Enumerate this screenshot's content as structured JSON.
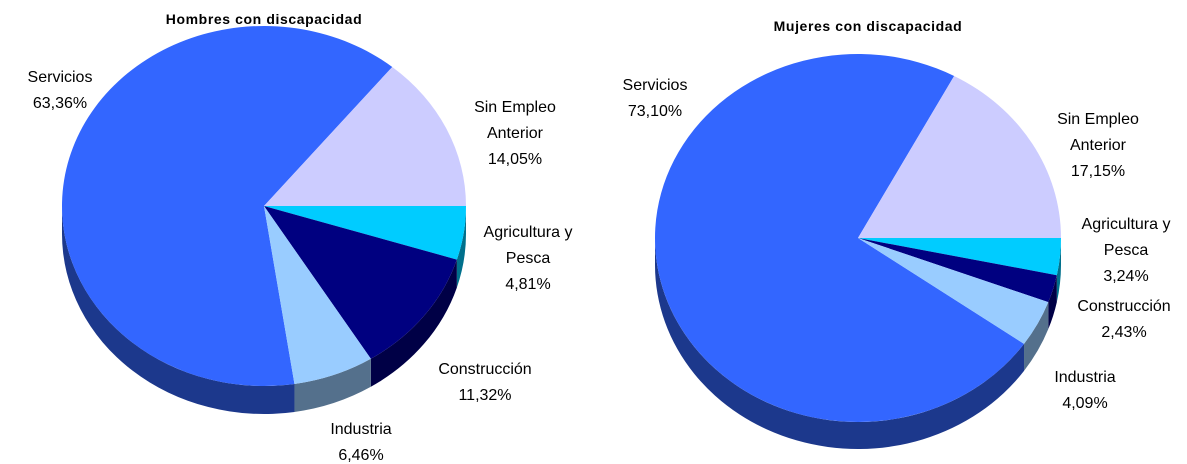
{
  "chart_data": [
    {
      "type": "pie",
      "title": "Hombres con discapacidad",
      "categories": [
        "Servicios",
        "Sin Empleo Anterior",
        "Agricultura y Pesca",
        "Construcción",
        "Industria"
      ],
      "values": [
        63.36,
        14.05,
        4.81,
        11.32,
        6.46
      ],
      "value_labels": [
        "63,36%",
        "14,05%",
        "4,81%",
        "11,32%",
        "6,46%"
      ],
      "colors": [
        "#3366ff",
        "#ccccff",
        "#00ccff",
        "#000080",
        "#99ccff"
      ]
    },
    {
      "type": "pie",
      "title": "Mujeres con discapacidad",
      "categories": [
        "Servicios",
        "Sin Empleo Anterior",
        "Agricultura y Pesca",
        "Construcción",
        "Industria"
      ],
      "values": [
        73.1,
        17.15,
        3.24,
        2.43,
        4.09
      ],
      "value_labels": [
        "73,10%",
        "17,15%",
        "3,24%",
        "2,43%",
        "4,09%"
      ],
      "colors": [
        "#3366ff",
        "#ccccff",
        "#00ccff",
        "#000080",
        "#99ccff"
      ]
    }
  ]
}
